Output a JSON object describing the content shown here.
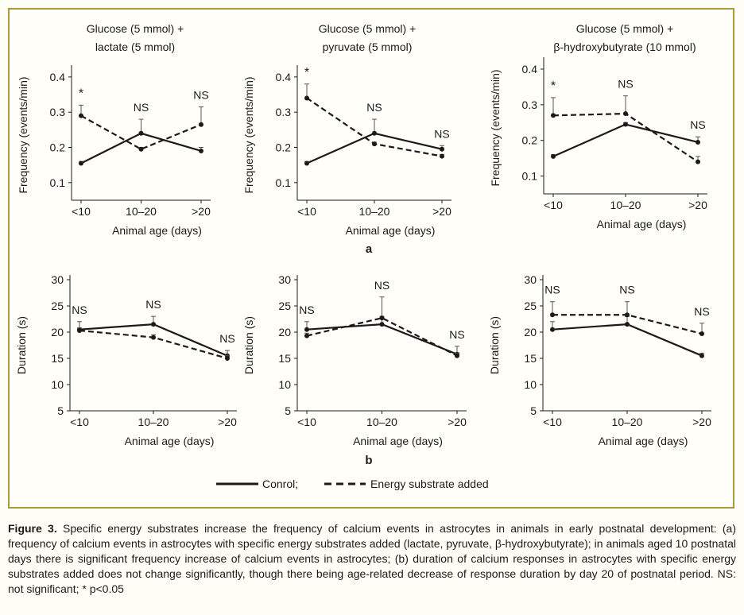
{
  "figure": {
    "panel_a_label": "a",
    "panel_b_label": "b",
    "legend": {
      "control": "Conrol;",
      "substrate": "Energy substrate added"
    }
  },
  "caption": {
    "label": "Figure 3.",
    "text": "Specific energy substrates increase the frequency of calcium events in astrocytes in animals in early postnatal development: (a) frequency of calcium events in astrocytes with specific energy substrates added (lactate, pyruvate, β-hydroxybutyrate); in animals aged 10 postnatal days there is significant frequency increase of calcium events in astrocytes; (b) duration of calcium responses in astrocytes with specific energy substrates added does not change significantly, though there being age-related decrease of response duration by day 20 of postnatal period. NS: not significant; * p<0.05"
  },
  "chart_data": [
    {
      "type": "line",
      "title": "Glucose (5 mmol) + lactate (5 mmol)",
      "title_lines": [
        "Glucose (5 mmol) +",
        "lactate (5 mmol)"
      ],
      "xlabel": "Animal age (days)",
      "ylabel": "Frequency (events/min)",
      "categories": [
        "<10",
        "10–20",
        ">20"
      ],
      "yticks": [
        0.1,
        0.2,
        0.3,
        0.4
      ],
      "ylim": [
        0.05,
        0.42
      ],
      "series": [
        {
          "name": "Conrol",
          "style": "solid",
          "values": [
            0.155,
            0.24,
            0.19
          ],
          "err": [
            0.005,
            0.04,
            0.01
          ]
        },
        {
          "name": "Energy substrate added",
          "style": "dashed",
          "values": [
            0.29,
            0.195,
            0.265
          ],
          "err": [
            0.03,
            0.005,
            0.05
          ]
        }
      ],
      "annotations": [
        "*",
        "NS",
        "NS"
      ]
    },
    {
      "type": "line",
      "title": "Glucose (5 mmol) + pyruvate (5 mmol)",
      "title_lines": [
        "Glucose (5 mmol) +",
        "pyruvate (5 mmol)"
      ],
      "xlabel": "Animal age (days)",
      "ylabel": "Frequency (events/min)",
      "categories": [
        "<10",
        "10–20",
        ">20"
      ],
      "yticks": [
        0.1,
        0.2,
        0.3,
        0.4
      ],
      "ylim": [
        0.05,
        0.42
      ],
      "series": [
        {
          "name": "Conrol",
          "style": "solid",
          "values": [
            0.155,
            0.24,
            0.195
          ],
          "err": [
            0.005,
            0.04,
            0.01
          ]
        },
        {
          "name": "Energy substrate added",
          "style": "dashed",
          "values": [
            0.34,
            0.21,
            0.175
          ],
          "err": [
            0.04,
            0.005,
            0.005
          ]
        }
      ],
      "annotations": [
        "*",
        "NS",
        "NS"
      ]
    },
    {
      "type": "line",
      "title": "Glucose (5 mmol) + β-hydroxybutyrate (10 mmol)",
      "title_lines": [
        "Glucose (5 mmol) +",
        "β-hydroxybutyrate (10 mmol)"
      ],
      "xlabel": "Animal age (days)",
      "ylabel": "Frequency (events/min)",
      "categories": [
        "<10",
        "10–20",
        ">20"
      ],
      "yticks": [
        0.1,
        0.2,
        0.3,
        0.4
      ],
      "ylim": [
        0.05,
        0.42
      ],
      "series": [
        {
          "name": "Conrol",
          "style": "solid",
          "values": [
            0.155,
            0.245,
            0.195
          ],
          "err": [
            0.005,
            0.005,
            0.015
          ]
        },
        {
          "name": "Energy substrate added",
          "style": "dashed",
          "values": [
            0.27,
            0.275,
            0.14
          ],
          "err": [
            0.05,
            0.05,
            0.015
          ]
        }
      ],
      "annotations": [
        "*",
        "NS",
        "NS"
      ]
    },
    {
      "type": "line",
      "title": "",
      "xlabel": "Animal age (days)",
      "ylabel": "Duration (s)",
      "categories": [
        "<10",
        "10–20",
        ">20"
      ],
      "yticks": [
        5,
        10,
        15,
        20,
        25,
        30
      ],
      "ylim": [
        5,
        30
      ],
      "series": [
        {
          "name": "Conrol",
          "style": "solid",
          "values": [
            20.5,
            21.5,
            15.5
          ],
          "err": [
            1.5,
            1.5,
            1.0
          ]
        },
        {
          "name": "Energy substrate added",
          "style": "dashed",
          "values": [
            20.3,
            19.0,
            15.0
          ],
          "err": [
            0.5,
            0.5,
            0.5
          ]
        }
      ],
      "annotations": [
        "NS",
        "NS",
        "NS"
      ]
    },
    {
      "type": "line",
      "title": "",
      "xlabel": "Animal age (days)",
      "ylabel": "Duration (s)",
      "categories": [
        "<10",
        "10–20",
        ">20"
      ],
      "yticks": [
        5,
        10,
        15,
        20,
        25,
        30
      ],
      "ylim": [
        5,
        30
      ],
      "series": [
        {
          "name": "Conrol",
          "style": "solid",
          "values": [
            20.5,
            21.5,
            15.8
          ],
          "err": [
            1.5,
            1.5,
            1.5
          ]
        },
        {
          "name": "Energy substrate added",
          "style": "dashed",
          "values": [
            19.3,
            22.7,
            15.5
          ],
          "err": [
            0.5,
            4.0,
            0.5
          ]
        }
      ],
      "annotations": [
        "NS",
        "NS",
        "NS"
      ]
    },
    {
      "type": "line",
      "title": "",
      "xlabel": "Animal age (days)",
      "ylabel": "Duration (s)",
      "categories": [
        "<10",
        "10–20",
        ">20"
      ],
      "yticks": [
        5,
        10,
        15,
        20,
        25,
        30
      ],
      "ylim": [
        5,
        30
      ],
      "series": [
        {
          "name": "Conrol",
          "style": "solid",
          "values": [
            20.5,
            21.5,
            15.5
          ],
          "err": [
            1.5,
            1.5,
            0.5
          ]
        },
        {
          "name": "Energy substrate added",
          "style": "dashed",
          "values": [
            23.3,
            23.3,
            19.7
          ],
          "err": [
            2.5,
            2.5,
            2.0
          ]
        }
      ],
      "annotations": [
        "NS",
        "NS",
        "NS"
      ]
    }
  ]
}
